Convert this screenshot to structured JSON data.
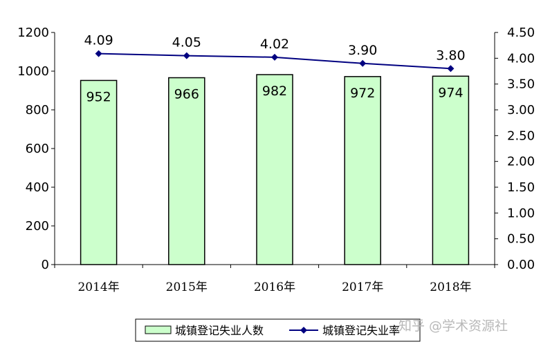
{
  "chart_data": {
    "type": "bar",
    "categories": [
      "2014年",
      "2015年",
      "2016年",
      "2017年",
      "2018年"
    ],
    "series": [
      {
        "name": "城镇登记失业人数",
        "type": "bar",
        "axis": "left",
        "values": [
          952,
          966,
          982,
          972,
          974
        ],
        "labels": [
          "952",
          "966",
          "982",
          "972",
          "974"
        ],
        "color": "#ccffcc"
      },
      {
        "name": "城镇登记失业率",
        "type": "line",
        "axis": "right",
        "values": [
          4.09,
          4.05,
          4.02,
          3.9,
          3.8
        ],
        "labels": [
          "4.09",
          "4.05",
          "4.02",
          "3.90",
          "3.80"
        ],
        "color": "#000080"
      }
    ],
    "yaxis_left": {
      "min": 0,
      "max": 1200,
      "ticks": [
        "0",
        "200",
        "400",
        "600",
        "800",
        "1000",
        "1200"
      ]
    },
    "yaxis_right": {
      "min": 0,
      "max": 4.5,
      "ticks": [
        "0.00",
        "0.50",
        "1.00",
        "1.50",
        "2.00",
        "2.50",
        "3.00",
        "3.50",
        "4.00",
        "4.50"
      ]
    },
    "grid": false,
    "legend_position": "bottom"
  },
  "watermark": "知乎 @学术资源社"
}
